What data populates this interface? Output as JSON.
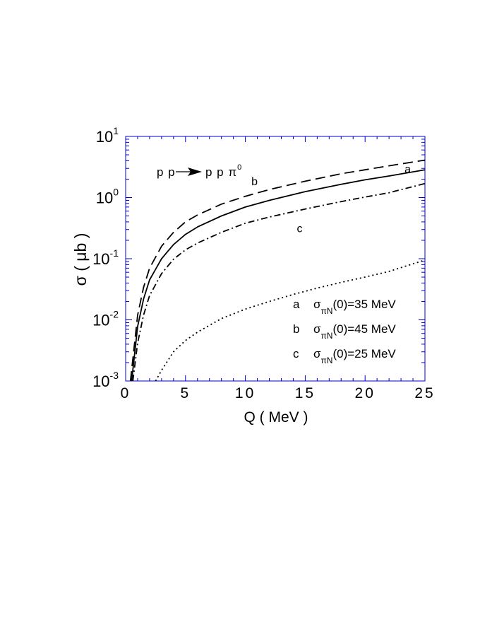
{
  "chart_data": {
    "type": "line",
    "title": "",
    "reaction": {
      "lhs": "p p",
      "rhs": "p p π",
      "rhs_sup": "0"
    },
    "xlabel": "Q  ( MeV )",
    "ylabel": "σ ( μb )",
    "xlim": [
      0,
      25
    ],
    "ylim": [
      0.001,
      10
    ],
    "yscale": "log",
    "grid": false,
    "frame_color": "#0000cc",
    "x_ticks": [
      {
        "value": 0,
        "label": "0"
      },
      {
        "value": 5,
        "label": "5"
      },
      {
        "value": 10,
        "label": "10"
      },
      {
        "value": 15,
        "label": "15"
      },
      {
        "value": 20,
        "label": "20"
      },
      {
        "value": 25,
        "label": "25"
      }
    ],
    "y_ticks": [
      {
        "value": 0.001,
        "base": "10",
        "exp": "-3"
      },
      {
        "value": 0.01,
        "base": "10",
        "exp": "-2"
      },
      {
        "value": 0.1,
        "base": "10",
        "exp": "-1"
      },
      {
        "value": 1,
        "base": "10",
        "exp": "0"
      },
      {
        "value": 10,
        "base": "10",
        "exp": "1"
      }
    ],
    "series": [
      {
        "name": "a",
        "style": "solid",
        "x": [
          0.5,
          1,
          1.5,
          2,
          3,
          4,
          5,
          6,
          8,
          10,
          12,
          15,
          18,
          20,
          22,
          25
        ],
        "y": [
          0.001,
          0.0078,
          0.022,
          0.045,
          0.1,
          0.17,
          0.25,
          0.33,
          0.5,
          0.7,
          0.9,
          1.25,
          1.65,
          1.95,
          2.25,
          2.85
        ]
      },
      {
        "name": "b",
        "style": "dashed",
        "x": [
          0.4,
          1,
          1.5,
          2,
          3,
          4,
          5,
          6,
          8,
          10,
          12,
          15,
          18,
          20,
          22,
          25
        ],
        "y": [
          0.001,
          0.012,
          0.034,
          0.07,
          0.16,
          0.27,
          0.4,
          0.52,
          0.78,
          1.05,
          1.35,
          1.85,
          2.45,
          2.85,
          3.3,
          4.1
        ]
      },
      {
        "name": "c",
        "style": "dashdot",
        "x": [
          0.6,
          1,
          1.5,
          2,
          3,
          4,
          5,
          6,
          8,
          10,
          12,
          15,
          18,
          20,
          22,
          25
        ],
        "y": [
          0.001,
          0.0042,
          0.012,
          0.025,
          0.057,
          0.098,
          0.14,
          0.18,
          0.27,
          0.38,
          0.48,
          0.65,
          0.86,
          1.02,
          1.2,
          1.7
        ]
      },
      {
        "name": "",
        "style": "dotted",
        "x": [
          2.5,
          3,
          4,
          5,
          6,
          8,
          10,
          12,
          14,
          16,
          18,
          20,
          22,
          25
        ],
        "y": [
          0.001,
          0.0015,
          0.003,
          0.0046,
          0.0063,
          0.0105,
          0.015,
          0.02,
          0.026,
          0.033,
          0.041,
          0.05,
          0.062,
          0.095
        ]
      }
    ],
    "curve_labels": [
      {
        "text": "b",
        "x": 10.5,
        "y": 1.6
      },
      {
        "text": "a",
        "x": 23.3,
        "y": 2.55
      },
      {
        "text": "c",
        "x": 14.3,
        "y": 0.27
      }
    ],
    "legend": {
      "placement": "bottom-right",
      "entries": [
        {
          "key": "a",
          "sym": "σ",
          "sub": "πN",
          "rest": "(0)=35  MeV"
        },
        {
          "key": "b",
          "sym": "σ",
          "sub": "πN",
          "rest": "(0)=45  MeV"
        },
        {
          "key": "c",
          "sym": "σ",
          "sub": "πN",
          "rest": "(0)=25  MeV"
        }
      ]
    }
  }
}
